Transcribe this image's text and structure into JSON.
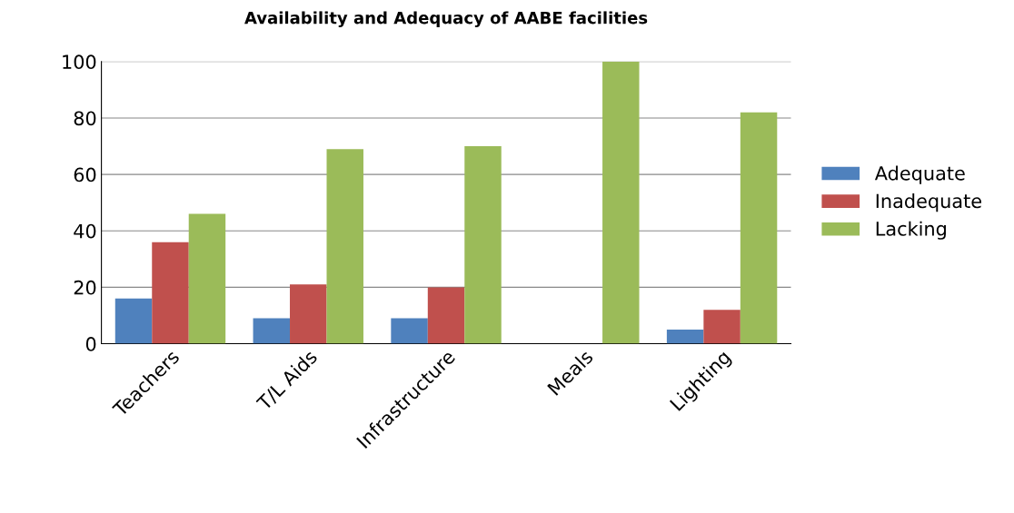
{
  "chart_data": {
    "type": "bar",
    "title": "Availability and Adequacy of AABE facilities",
    "categories": [
      "Teachers",
      "T/L Aids",
      "Infrastructure",
      "Meals",
      "Lighting"
    ],
    "series": [
      {
        "name": "Adequate",
        "color": "#4f81bd",
        "values": [
          16,
          9,
          9,
          0,
          5
        ]
      },
      {
        "name": "Inadequate",
        "color": "#c0504d",
        "values": [
          36,
          21,
          20,
          0,
          12
        ]
      },
      {
        "name": "Lacking",
        "color": "#9bbb59",
        "values": [
          46,
          69,
          70,
          100,
          82
        ]
      }
    ],
    "ylim": [
      0,
      100
    ],
    "yticks": [
      0,
      20,
      40,
      60,
      80,
      100
    ],
    "grid": "y",
    "legend": "right"
  }
}
